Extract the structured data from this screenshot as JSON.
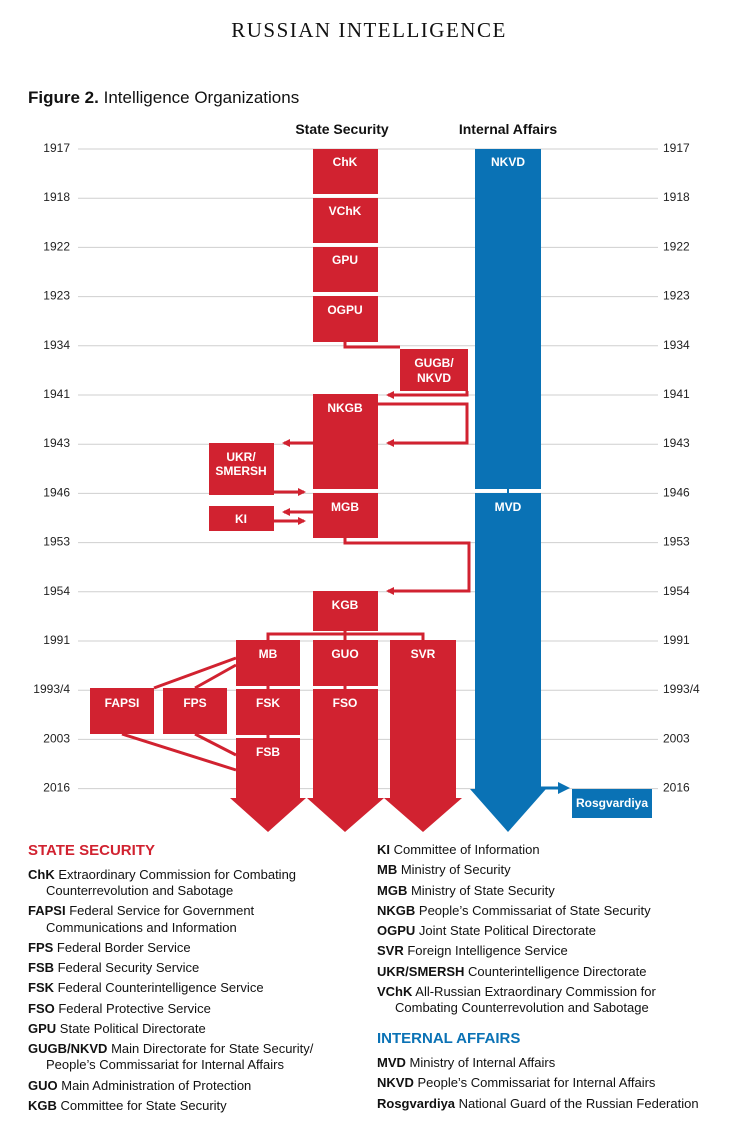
{
  "header": "RUSSIAN INTELLIGENCE",
  "figure": {
    "number": "Figure 2.",
    "title": "Intelligence Organizations"
  },
  "columns": {
    "state": "State Security",
    "internal": "Internal Affairs"
  },
  "years": [
    "1917",
    "1918",
    "1922",
    "1923",
    "1934",
    "1941",
    "1943",
    "1946",
    "1953",
    "1954",
    "1991",
    "1993/4",
    "2003",
    "2016"
  ],
  "org_labels": {
    "chk": "ChK",
    "vchk": "VChK",
    "gpu": "GPU",
    "ogpu": "OGPU",
    "gugb_line1": "GUGB/",
    "gugb_line2": "NKVD",
    "nkgb": "NKGB",
    "ukr_line1": "UKR/",
    "ukr_line2": "SMERSH",
    "mgb": "MGB",
    "ki": "KI",
    "kgb": "KGB",
    "mb": "MB",
    "guo": "GUO",
    "svr": "SVR",
    "fapsi": "FAPSI",
    "fps": "FPS",
    "fsk": "FSK",
    "fso": "FSO",
    "fsb": "FSB",
    "nkvd": "NKVD",
    "mvd": "MVD",
    "rosgvardiya": "Rosgvardiya"
  },
  "colors": {
    "state": "#d12230",
    "internal": "#0a72b5",
    "state_heading": "#d12230",
    "internal_heading": "#0a72b5"
  },
  "legend": {
    "state_heading": "STATE SECURITY",
    "internal_heading": "INTERNAL AFFAIRS",
    "state_items": [
      {
        "abbr": "ChK",
        "desc": "Extraordinary Commission for Combating Counterrevolution and Sabotage"
      },
      {
        "abbr": "FAPSI",
        "desc": "Federal Service for Government Communications and Information"
      },
      {
        "abbr": "FPS",
        "desc": "Federal Border Service"
      },
      {
        "abbr": "FSB",
        "desc": "Federal Security Service"
      },
      {
        "abbr": "FSK",
        "desc": "Federal Counterintelligence Service"
      },
      {
        "abbr": "FSO",
        "desc": "Federal Protective Service"
      },
      {
        "abbr": "GPU",
        "desc": "State Political Directorate"
      },
      {
        "abbr": "GUGB/NKVD",
        "desc": "Main Directorate for State Security/ People’s Commissariat for Internal Affairs"
      },
      {
        "abbr": "GUO",
        "desc": "Main Administration of Protection"
      },
      {
        "abbr": "KGB",
        "desc": "Committee for State Security"
      }
    ],
    "state_items_right": [
      {
        "abbr": "KI",
        "desc": "Committee of Information"
      },
      {
        "abbr": "MB",
        "desc": "Ministry of Security"
      },
      {
        "abbr": "MGB",
        "desc": "Ministry of State Security"
      },
      {
        "abbr": "NKGB",
        "desc": "People’s Commissariat of State Security"
      },
      {
        "abbr": "OGPU",
        "desc": "Joint State Political Directorate"
      },
      {
        "abbr": "SVR",
        "desc": "Foreign Intelligence Service"
      },
      {
        "abbr": "UKR/SMERSH",
        "desc": "Counterintelligence Directorate"
      },
      {
        "abbr": "VChK",
        "desc": "All-Russian Extraordinary Commission for Combating Counterrevolution and Sabotage"
      }
    ],
    "internal_items": [
      {
        "abbr": "MVD",
        "desc": "Ministry of Internal Affairs"
      },
      {
        "abbr": "NKVD",
        "desc": "People’s Commissariat for Internal Affairs"
      },
      {
        "abbr": "Rosgvardiya",
        "desc": "National Guard of the Russian Federation"
      }
    ]
  }
}
